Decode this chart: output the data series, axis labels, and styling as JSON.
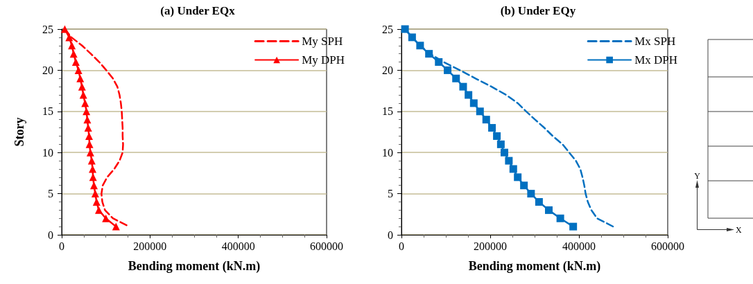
{
  "chart_data": [
    {
      "type": "line",
      "title": "(a) Under EQx",
      "xlabel": "Bending moment (kN.m)",
      "ylabel": "Story",
      "xlim": [
        0,
        600000
      ],
      "xticks": [
        0,
        200000,
        400000,
        600000
      ],
      "ylim": [
        0,
        25
      ],
      "yticks": [
        0,
        5,
        10,
        15,
        20,
        25
      ],
      "grid": "y",
      "legend": "top right",
      "series": [
        {
          "name": "My SPH",
          "color": "#ff0000",
          "marker": "none",
          "line_style": "dashed",
          "x": [
            7000,
            22000,
            46000,
            66000,
            85000,
            101000,
            116000,
            126000,
            131000,
            134000,
            136000,
            137000,
            138000,
            138000,
            139000,
            138000,
            131000,
            119000,
            103000,
            93000,
            90000,
            92000,
            98000,
            116000,
            153000
          ],
          "values": [
            25,
            24,
            23,
            22,
            21,
            20,
            19,
            18,
            17,
            16,
            15,
            14,
            13,
            12,
            11,
            10,
            9,
            8,
            7,
            6,
            5,
            4,
            3,
            2,
            1
          ]
        },
        {
          "name": "My DPH",
          "color": "#ff0000",
          "marker": "triangle",
          "line_style": "solid",
          "x": [
            7000,
            17000,
            23000,
            27000,
            32000,
            38000,
            42000,
            46000,
            49000,
            53000,
            56000,
            58000,
            60000,
            62000,
            63000,
            65000,
            68000,
            70000,
            71000,
            73000,
            76000,
            79000,
            84000,
            100000,
            123000
          ],
          "values": [
            25,
            24,
            23,
            22,
            21,
            20,
            19,
            18,
            17,
            16,
            15,
            14,
            13,
            12,
            11,
            10,
            9,
            8,
            7,
            6,
            5,
            4,
            3,
            2,
            1
          ]
        }
      ]
    },
    {
      "type": "line",
      "title": "(b) Under EQy",
      "xlabel": "Bending moment (kN.m)",
      "xlim": [
        0,
        600000
      ],
      "xticks": [
        0,
        200000,
        400000,
        600000
      ],
      "ylim": [
        0,
        25
      ],
      "yticks": [
        0,
        5,
        10,
        15,
        20,
        25
      ],
      "grid": "y",
      "legend": "top right",
      "series": [
        {
          "name": "Mx SPH",
          "color": "#0070c0",
          "marker": "none",
          "line_style": "dashed",
          "x": [
            8000,
            24000,
            42000,
            64000,
            95000,
            132000,
            167000,
            203000,
            236000,
            262000,
            281000,
            301000,
            322000,
            341000,
            363000,
            378000,
            393000,
            403000,
            408000,
            412000,
            415000,
            420000,
            428000,
            441000,
            477000
          ],
          "values": [
            25,
            24,
            23,
            22,
            21,
            20,
            19,
            18,
            17,
            16,
            15,
            14,
            13,
            12,
            11,
            10,
            9,
            8,
            7,
            6,
            5,
            4,
            3,
            2,
            1
          ]
        },
        {
          "name": "Mx DPH",
          "color": "#0070c0",
          "marker": "square",
          "line_style": "solid",
          "x": [
            8000,
            24000,
            42000,
            62000,
            84000,
            104000,
            123000,
            139000,
            151000,
            163000,
            177000,
            191000,
            204000,
            215000,
            224000,
            232000,
            242000,
            252000,
            262000,
            276000,
            292000,
            310000,
            332000,
            358000,
            387000
          ],
          "values": [
            25,
            24,
            23,
            22,
            21,
            20,
            19,
            18,
            17,
            16,
            15,
            14,
            13,
            12,
            11,
            10,
            9,
            8,
            7,
            6,
            5,
            4,
            3,
            2,
            1
          ]
        }
      ]
    },
    {
      "type": "other",
      "annotations": [
        "Y",
        "X"
      ]
    }
  ]
}
